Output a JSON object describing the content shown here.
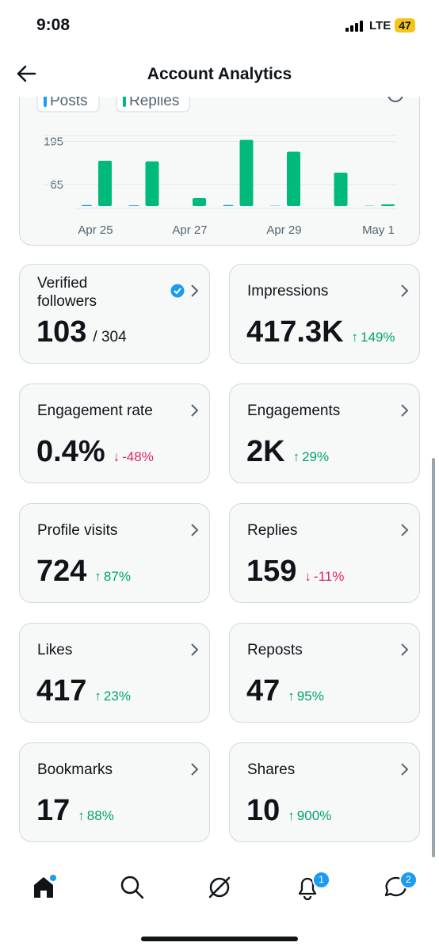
{
  "status_bar": {
    "time": "9:08",
    "network": "LTE",
    "battery": "47"
  },
  "header": {
    "title": "Account Analytics"
  },
  "chart_data": {
    "type": "bar",
    "categories": [
      "Apr 25",
      null,
      "Apr 27",
      null,
      "Apr 29",
      null,
      "May 1"
    ],
    "series": [
      {
        "name": "Posts",
        "color": "#1d9bf0",
        "values": [
          3,
          2,
          0,
          3,
          1,
          0,
          1
        ]
      },
      {
        "name": "Replies",
        "color": "#00ba7c",
        "values": [
          137,
          135,
          24,
          200,
          164,
          101,
          5
        ]
      }
    ],
    "ylim": [
      0,
      230
    ],
    "yticks": [
      65,
      195
    ],
    "grid": true
  },
  "cards": [
    {
      "title": "Verified followers",
      "value": "103",
      "total": "/ 304",
      "verified": true
    },
    {
      "title": "Impressions",
      "value": "417.3K",
      "change": "149%",
      "direction": "up"
    },
    {
      "title": "Engagement rate",
      "value": "0.4%",
      "change": "-48%",
      "direction": "down"
    },
    {
      "title": "Engagements",
      "value": "2K",
      "change": "29%",
      "direction": "up"
    },
    {
      "title": "Profile visits",
      "value": "724",
      "change": "87%",
      "direction": "up"
    },
    {
      "title": "Replies",
      "value": "159",
      "change": "-11%",
      "direction": "down"
    },
    {
      "title": "Likes",
      "value": "417",
      "change": "23%",
      "direction": "up"
    },
    {
      "title": "Reposts",
      "value": "47",
      "change": "95%",
      "direction": "up"
    },
    {
      "title": "Bookmarks",
      "value": "17",
      "change": "88%",
      "direction": "up"
    },
    {
      "title": "Shares",
      "value": "10",
      "change": "900%",
      "direction": "up"
    }
  ],
  "nav": {
    "notifications_badge": "1",
    "messages_badge": "2"
  }
}
